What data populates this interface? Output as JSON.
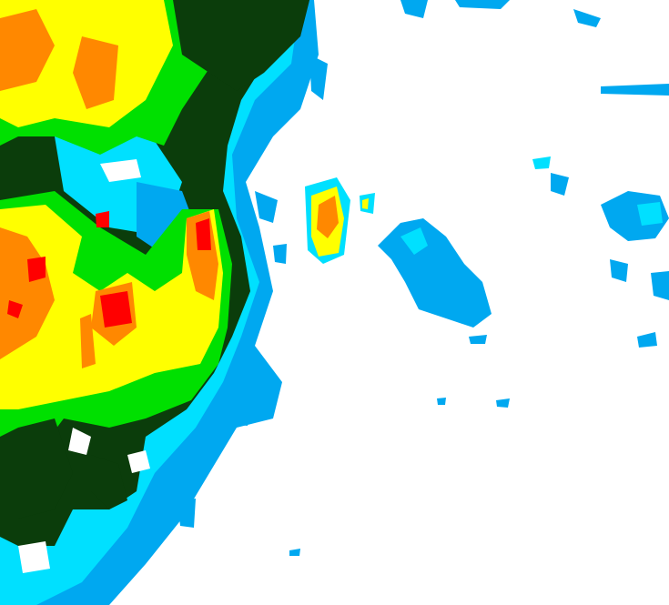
{
  "map": {
    "palette": {
      "background": "#ffffff",
      "light_blue": "#00a8f0",
      "cyan": "#00e0ff",
      "green": "#00e000",
      "dark_green": "#0b3d0b",
      "yellow": "#ffff00",
      "orange": "#ff8800",
      "red": "#ff0000"
    }
  }
}
